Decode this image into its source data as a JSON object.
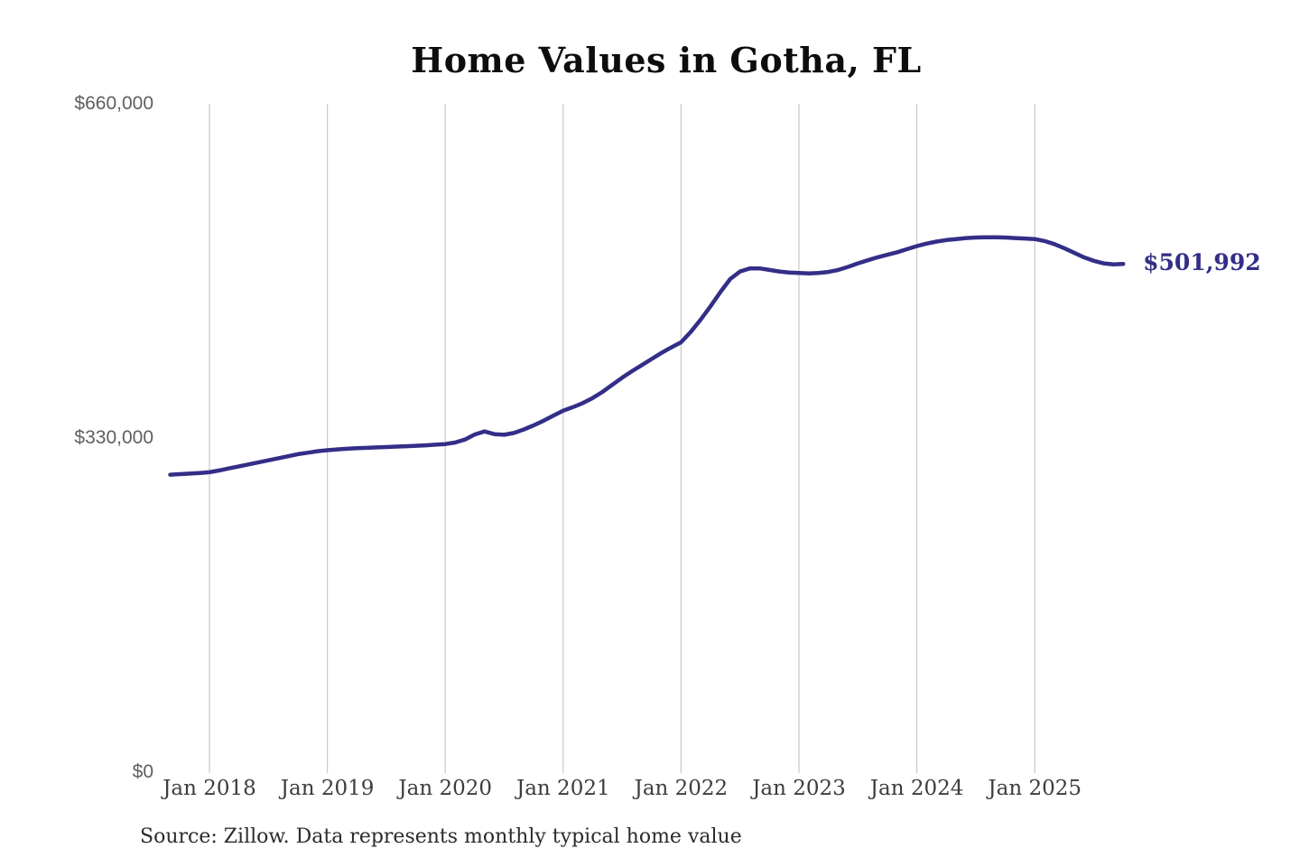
{
  "title": "Home Values in Gotha, FL",
  "source_note": "Source: Zillow. Data represents monthly typical home value",
  "colors": {
    "line": "#332e87",
    "grid": "#c9c9c9",
    "title": "#0d0d0d",
    "y_tick": "#5f5f5f",
    "x_tick": "#3d3d3d",
    "source": "#2b2b2b",
    "background": "#ffffff"
  },
  "chart_data": {
    "type": "line",
    "title": "Home Values in Gotha, FL",
    "xlabel": "",
    "ylabel": "",
    "ylim": [
      0,
      660000
    ],
    "y_ticks": [
      {
        "value": 0,
        "label": "$0"
      },
      {
        "value": 330000,
        "label": "$330,000"
      },
      {
        "value": 660000,
        "label": "$660,000"
      }
    ],
    "x_tick_labels": [
      "Jan 2018",
      "Jan 2019",
      "Jan 2020",
      "Jan 2021",
      "Jan 2022",
      "Jan 2023",
      "Jan 2024",
      "Jan 2025"
    ],
    "grid": "vertical-only",
    "legend": "none",
    "end_value": 501992,
    "end_value_label": "$501,992",
    "series": [
      {
        "name": "Monthly typical home value",
        "months": [
          "2017-09",
          "2017-10",
          "2017-11",
          "2017-12",
          "2018-01",
          "2018-02",
          "2018-03",
          "2018-04",
          "2018-05",
          "2018-06",
          "2018-07",
          "2018-08",
          "2018-09",
          "2018-10",
          "2018-11",
          "2018-12",
          "2019-01",
          "2019-02",
          "2019-03",
          "2019-04",
          "2019-05",
          "2019-06",
          "2019-07",
          "2019-08",
          "2019-09",
          "2019-10",
          "2019-11",
          "2019-12",
          "2020-01",
          "2020-02",
          "2020-03",
          "2020-04",
          "2020-05",
          "2020-06",
          "2020-07",
          "2020-08",
          "2020-09",
          "2020-10",
          "2020-11",
          "2020-12",
          "2021-01",
          "2021-02",
          "2021-03",
          "2021-04",
          "2021-05",
          "2021-06",
          "2021-07",
          "2021-08",
          "2021-09",
          "2021-10",
          "2021-11",
          "2021-12",
          "2022-01",
          "2022-02",
          "2022-03",
          "2022-04",
          "2022-05",
          "2022-06",
          "2022-07",
          "2022-08",
          "2022-09",
          "2022-10",
          "2022-11",
          "2022-12",
          "2023-01",
          "2023-02",
          "2023-03",
          "2023-04",
          "2023-05",
          "2023-06",
          "2023-07",
          "2023-08",
          "2023-09",
          "2023-10",
          "2023-11",
          "2023-12",
          "2024-01",
          "2024-02",
          "2024-03",
          "2024-04",
          "2024-05",
          "2024-06",
          "2024-07",
          "2024-08",
          "2024-09",
          "2024-10",
          "2024-11",
          "2024-12",
          "2025-01",
          "2025-02",
          "2025-03",
          "2025-04",
          "2025-05",
          "2025-06",
          "2025-07",
          "2025-08",
          "2025-09",
          "2025-10"
        ],
        "values": [
          293800,
          294300,
          294900,
          295500,
          296200,
          298000,
          300000,
          302000,
          304000,
          306000,
          308000,
          310000,
          312000,
          314000,
          315500,
          317000,
          318000,
          318800,
          319400,
          319900,
          320300,
          320700,
          321100,
          321500,
          321900,
          322300,
          322800,
          323400,
          324000,
          325500,
          328500,
          333500,
          336500,
          333800,
          333200,
          335000,
          338500,
          342500,
          347000,
          352000,
          357000,
          360500,
          364500,
          369500,
          375500,
          382500,
          389500,
          396000,
          402000,
          408000,
          414000,
          419500,
          424500,
          435000,
          447000,
          460000,
          474000,
          487000,
          494500,
          497500,
          497500,
          496000,
          494500,
          493500,
          493000,
          492500,
          493000,
          494000,
          496000,
          499000,
          502500,
          505500,
          508500,
          511000,
          513500,
          516500,
          519500,
          522000,
          524000,
          525500,
          526500,
          527500,
          528000,
          528200,
          528200,
          528000,
          527500,
          527000,
          526500,
          524500,
          521500,
          517500,
          513000,
          508500,
          505000,
          502500,
          501500,
          501992
        ]
      }
    ]
  }
}
